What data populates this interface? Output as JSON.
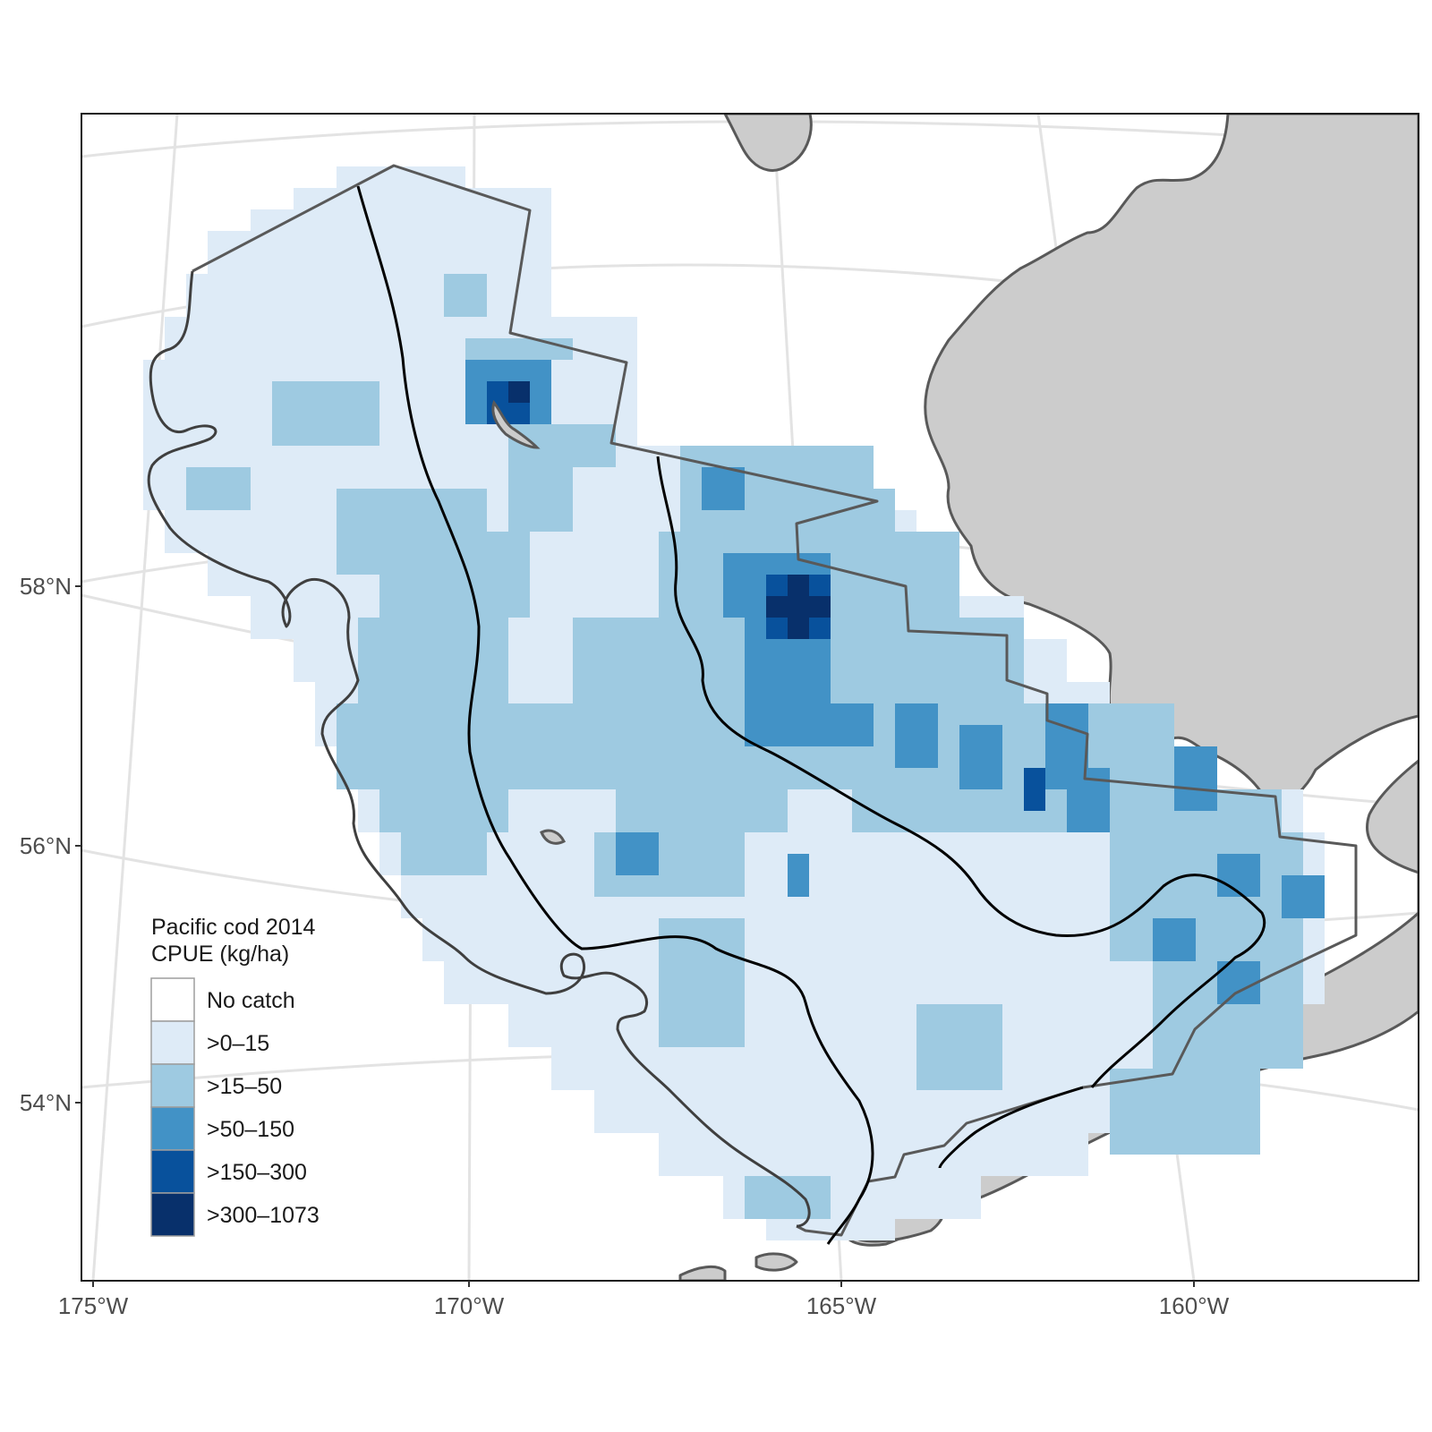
{
  "map": {
    "legend": {
      "title_line1": "Pacific cod 2014",
      "title_line2": "CPUE (kg/ha)",
      "classes": [
        {
          "label": "No catch",
          "color": "#ffffff"
        },
        {
          "label": ">0–15",
          "color": "#deebf7"
        },
        {
          "label": ">15–50",
          "color": "#9ecae1"
        },
        {
          "label": ">50–150",
          "color": "#4292c6"
        },
        {
          "label": ">150–300",
          "color": "#08519c"
        },
        {
          "label": ">300–1073",
          "color": "#08306b"
        }
      ]
    },
    "x_axis_labels": [
      "175°W",
      "170°W",
      "165°W",
      "160°W"
    ],
    "y_axis_labels": [
      "58°N",
      "56°N",
      "54°N"
    ],
    "colors": {
      "land": "#cccccc",
      "coast": "#595959",
      "graticule": "#e3e3e3",
      "frame": "#1a1a1a",
      "contour": "#000000"
    }
  }
}
